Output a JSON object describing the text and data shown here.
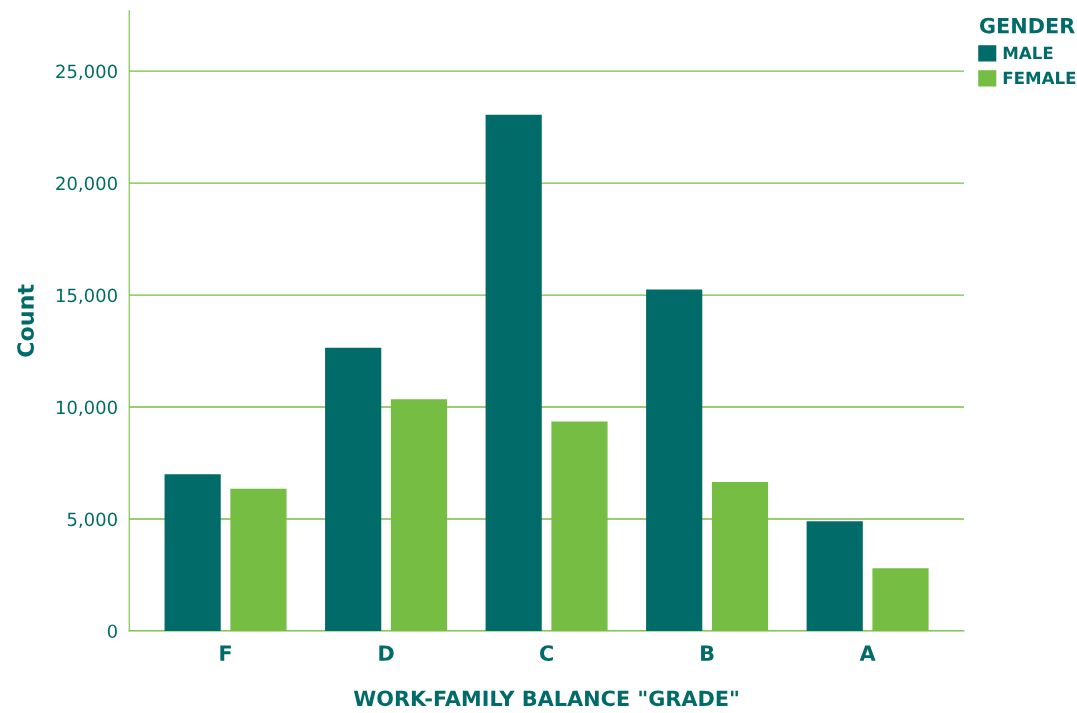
{
  "chart_data": {
    "type": "bar",
    "xlabel": "WORK-FAMILY BALANCE \"GRADE\"",
    "ylabel": "Count",
    "legend_title": "GENDER",
    "categories": [
      "F",
      "D",
      "C",
      "B",
      "A"
    ],
    "series": [
      {
        "name": "MALE",
        "color": "#006b68",
        "values": [
          7000,
          12650,
          23050,
          15250,
          4900
        ]
      },
      {
        "name": "FEMALE",
        "color": "#76bd43",
        "values": [
          6350,
          10350,
          9350,
          6650,
          2800
        ]
      }
    ],
    "ylim": [
      0,
      27700
    ],
    "yticks": [
      0,
      {
        "value": 5000,
        "label": "5,000"
      },
      {
        "value": 10000,
        "label": "10,000"
      },
      {
        "value": 15000,
        "label": "15,000"
      },
      {
        "value": 20000,
        "label": "20,000"
      },
      {
        "value": 25000,
        "label": "25,000"
      }
    ],
    "grid": "y",
    "legend": "top right"
  }
}
